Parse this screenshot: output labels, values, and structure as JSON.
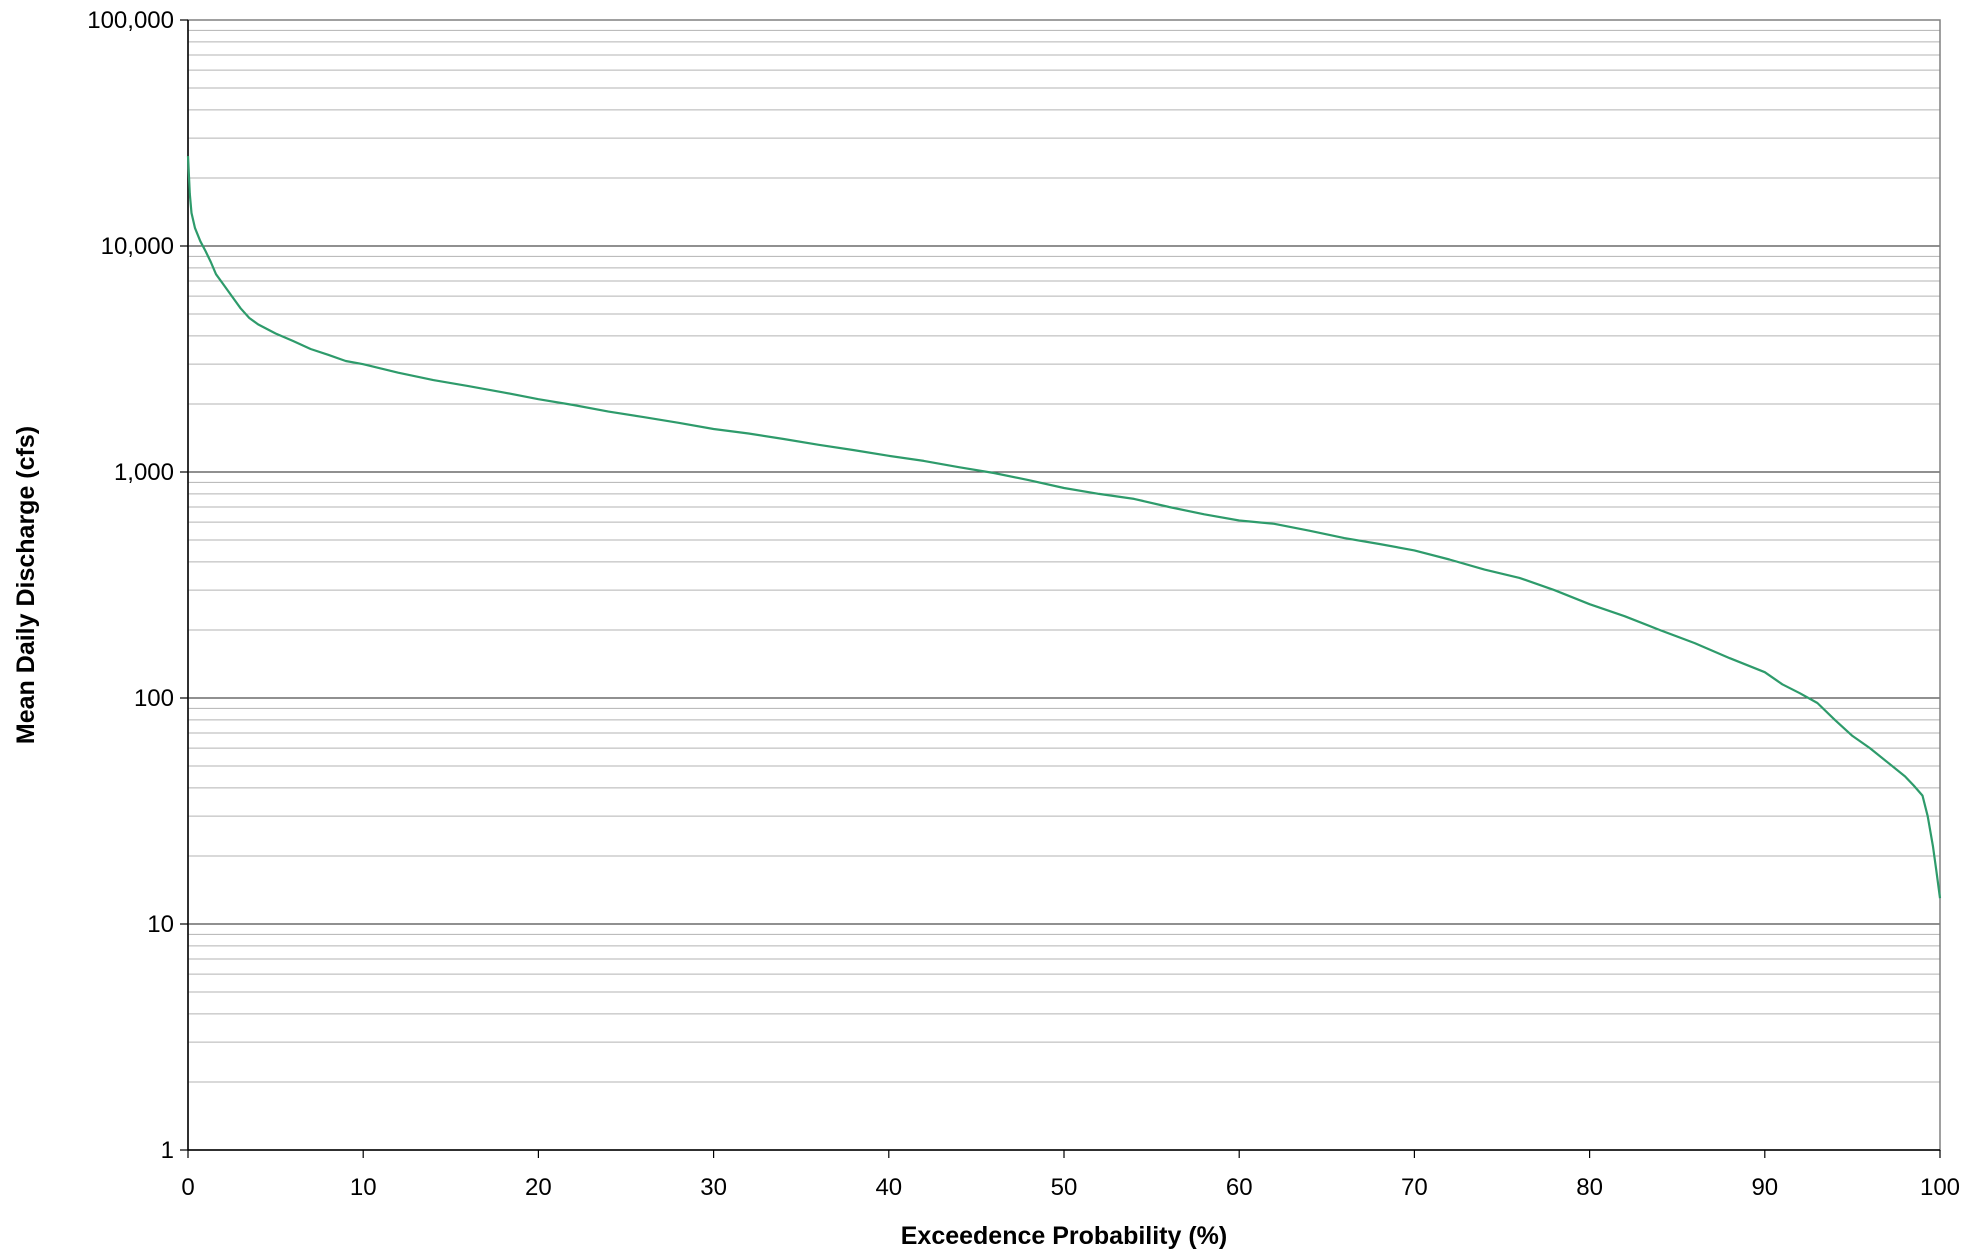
{
  "chart_data": {
    "type": "line",
    "title": "",
    "xlabel": "Exceedence Probability (%)",
    "ylabel": "Mean Daily Discharge (cfs)",
    "xlim": [
      0,
      100
    ],
    "ylim": [
      1,
      100000
    ],
    "y_scale": "log",
    "grid": "horizontal major and minor gridlines",
    "legend": "none",
    "x_ticks": [
      {
        "value": 0,
        "label": "0"
      },
      {
        "value": 10,
        "label": "10"
      },
      {
        "value": 20,
        "label": "20"
      },
      {
        "value": 30,
        "label": "30"
      },
      {
        "value": 40,
        "label": "40"
      },
      {
        "value": 50,
        "label": "50"
      },
      {
        "value": 60,
        "label": "60"
      },
      {
        "value": 70,
        "label": "70"
      },
      {
        "value": 80,
        "label": "80"
      },
      {
        "value": 90,
        "label": "90"
      },
      {
        "value": 100,
        "label": "100"
      }
    ],
    "y_ticks": [
      {
        "value": 1,
        "label": "1"
      },
      {
        "value": 10,
        "label": "10"
      },
      {
        "value": 100,
        "label": "100"
      },
      {
        "value": 1000,
        "label": "1,000"
      },
      {
        "value": 10000,
        "label": "10,000"
      },
      {
        "value": 100000,
        "label": "100,000"
      }
    ],
    "colors": {
      "line": "#2e9b6b",
      "major_grid": "#4d4d4d",
      "minor_grid": "#b3b3b3",
      "frame": "#808080"
    },
    "series": [
      {
        "x": [
          0,
          0.1,
          0.2,
          0.4,
          0.7,
          1.0,
          1.3,
          1.6,
          2.0,
          2.5,
          3.0,
          3.5,
          4.0,
          5.0,
          6.0,
          7.0,
          8.0,
          9.0,
          10.0,
          12.0,
          14.0,
          16.0,
          18.0,
          20.0,
          22.0,
          24.0,
          26.0,
          28.0,
          30.0,
          32.0,
          34.0,
          36.0,
          38.0,
          40.0,
          42.0,
          44.0,
          46.0,
          48.0,
          50.0,
          52.0,
          54.0,
          56.0,
          58.0,
          60.0,
          62.0,
          64.0,
          66.0,
          68.0,
          70.0,
          72.0,
          74.0,
          76.0,
          78.0,
          80.0,
          82.0,
          84.0,
          86.0,
          88.0,
          90.0,
          91.0,
          92.0,
          93.0,
          94.0,
          95.0,
          96.0,
          97.0,
          98.0,
          98.5,
          99.0,
          99.3,
          99.6,
          99.8,
          100.0
        ],
        "y": [
          25000,
          17000,
          14000,
          12000,
          10500,
          9500,
          8500,
          7500,
          6800,
          6000,
          5300,
          4800,
          4500,
          4100,
          3800,
          3500,
          3300,
          3100,
          3000,
          2750,
          2550,
          2400,
          2250,
          2100,
          1980,
          1850,
          1750,
          1650,
          1550,
          1480,
          1400,
          1320,
          1250,
          1180,
          1120,
          1050,
          990,
          920,
          850,
          800,
          760,
          700,
          650,
          610,
          590,
          550,
          510,
          480,
          450,
          410,
          370,
          340,
          300,
          260,
          230,
          200,
          175,
          150,
          130,
          115,
          105,
          95,
          80,
          68,
          60,
          52,
          45,
          41,
          37,
          30,
          22,
          17,
          13
        ]
      }
    ]
  }
}
